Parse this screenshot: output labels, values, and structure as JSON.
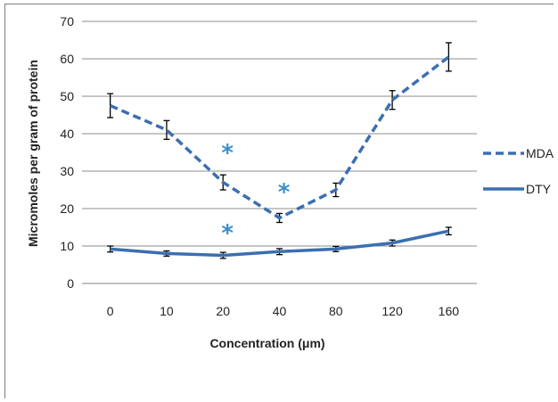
{
  "chart_data": {
    "type": "line",
    "title": "",
    "xlabel": "Concentration (μm)",
    "ylabel": "Micromoles per gram of protein",
    "categories": [
      "0",
      "10",
      "20",
      "40",
      "80",
      "120",
      "160"
    ],
    "ylim": [
      0,
      70
    ],
    "yticks": [
      "0",
      "10",
      "20",
      "30",
      "40",
      "50",
      "60",
      "70"
    ],
    "grid": true,
    "legend_position": "right",
    "series": [
      {
        "name": "MDA",
        "style": "dashed",
        "color": "#3b6fb0",
        "values": [
          47.5,
          41,
          27,
          17.5,
          25,
          49,
          60.5
        ],
        "errors": [
          3.2,
          2.5,
          2.0,
          1.2,
          1.8,
          2.5,
          3.8
        ]
      },
      {
        "name": "DTY",
        "style": "solid",
        "color": "#3b6fb0",
        "values": [
          9.2,
          8,
          7.5,
          8.5,
          9.2,
          10.8,
          14
        ],
        "errors": [
          0.8,
          0.7,
          0.8,
          0.8,
          0.7,
          0.8,
          1.0
        ]
      }
    ],
    "annotations": [
      {
        "text": "*",
        "category": "20",
        "y": 36
      },
      {
        "text": "*",
        "category": "40",
        "y": 25.5
      },
      {
        "text": "*",
        "category": "20",
        "y": 14.5
      }
    ]
  }
}
